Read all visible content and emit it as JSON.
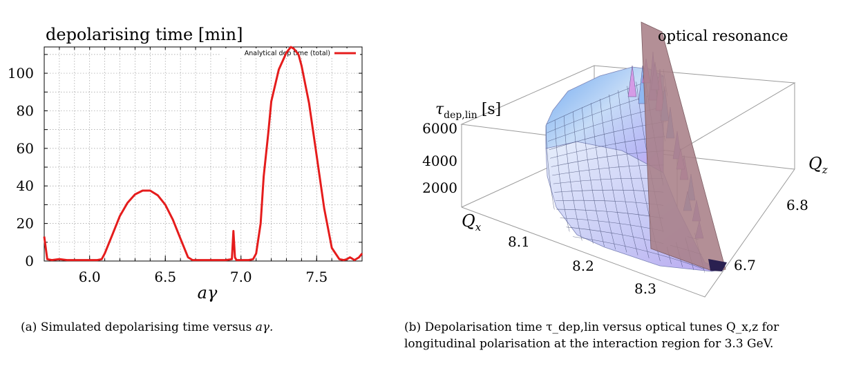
{
  "figures": {
    "a": {
      "caption_label": "(a)",
      "caption_text": "Simulated depolarising time versus",
      "caption_var": "aγ."
    },
    "b": {
      "caption_label": "(b)",
      "caption_text": "Depolarisation time τ_dep,lin versus optical tunes Q_x,z for longitudinal polarisation at the interaction region for 3.3 GeV."
    }
  },
  "chart_data": [
    {
      "type": "line",
      "title": "depolarising time [min]",
      "xlabel": "aγ",
      "ylabel": "",
      "xlim": [
        5.7,
        7.8
      ],
      "ylim": [
        0,
        114
      ],
      "x_ticks": [
        "6.0",
        "6.5",
        "7.0",
        "7.5"
      ],
      "x_tick_values": [
        6.0,
        6.5,
        7.0,
        7.5
      ],
      "y_ticks": [
        "0",
        "20",
        "40",
        "60",
        "80",
        "100"
      ],
      "y_tick_values": [
        0,
        20,
        40,
        60,
        80,
        100
      ],
      "grid": true,
      "legend_position": "top-right",
      "series": [
        {
          "name": "Analytical dep time (total)",
          "color": "#e51c1c",
          "x": [
            5.7,
            5.72,
            5.75,
            5.8,
            5.85,
            5.9,
            5.95,
            6.0,
            6.05,
            6.08,
            6.1,
            6.15,
            6.2,
            6.25,
            6.3,
            6.35,
            6.4,
            6.45,
            6.5,
            6.55,
            6.6,
            6.65,
            6.68,
            6.7,
            6.75,
            6.8,
            6.85,
            6.9,
            6.94,
            6.95,
            6.96,
            6.97,
            7.0,
            7.05,
            7.08,
            7.1,
            7.13,
            7.15,
            7.18,
            7.2,
            7.25,
            7.3,
            7.33,
            7.35,
            7.38,
            7.4,
            7.45,
            7.5,
            7.55,
            7.6,
            7.65,
            7.68,
            7.7,
            7.72,
            7.75,
            7.78,
            7.8
          ],
          "y": [
            13,
            1,
            0.5,
            1,
            0.5,
            0.5,
            0.5,
            0.5,
            0.5,
            1,
            4,
            14,
            24,
            31,
            35.5,
            37.5,
            37.5,
            35,
            30,
            22,
            12,
            2,
            0.5,
            0.5,
            0.5,
            0.5,
            0.5,
            0.5,
            1,
            16,
            2,
            0.5,
            0.5,
            0.5,
            1,
            4,
            20,
            45,
            68,
            85,
            102,
            111,
            114,
            113,
            110,
            104,
            84,
            56,
            28,
            7,
            1,
            0.5,
            1,
            2,
            0.5,
            2,
            4
          ]
        }
      ]
    },
    {
      "type": "surface3d",
      "zlabel": "τ_dep,lin [s]",
      "annotation": "optical resonance",
      "x_axis_label": "Q_x",
      "z_axis_label": "Q_z",
      "x_ticks": [
        "8.1",
        "8.2",
        "8.3"
      ],
      "z_ticks": [
        "6.8",
        "6.7"
      ],
      "vertical_ticks": [
        "6000",
        "4000",
        "2000"
      ],
      "vertical_tick_values": [
        6000,
        4000,
        2000
      ]
    }
  ]
}
